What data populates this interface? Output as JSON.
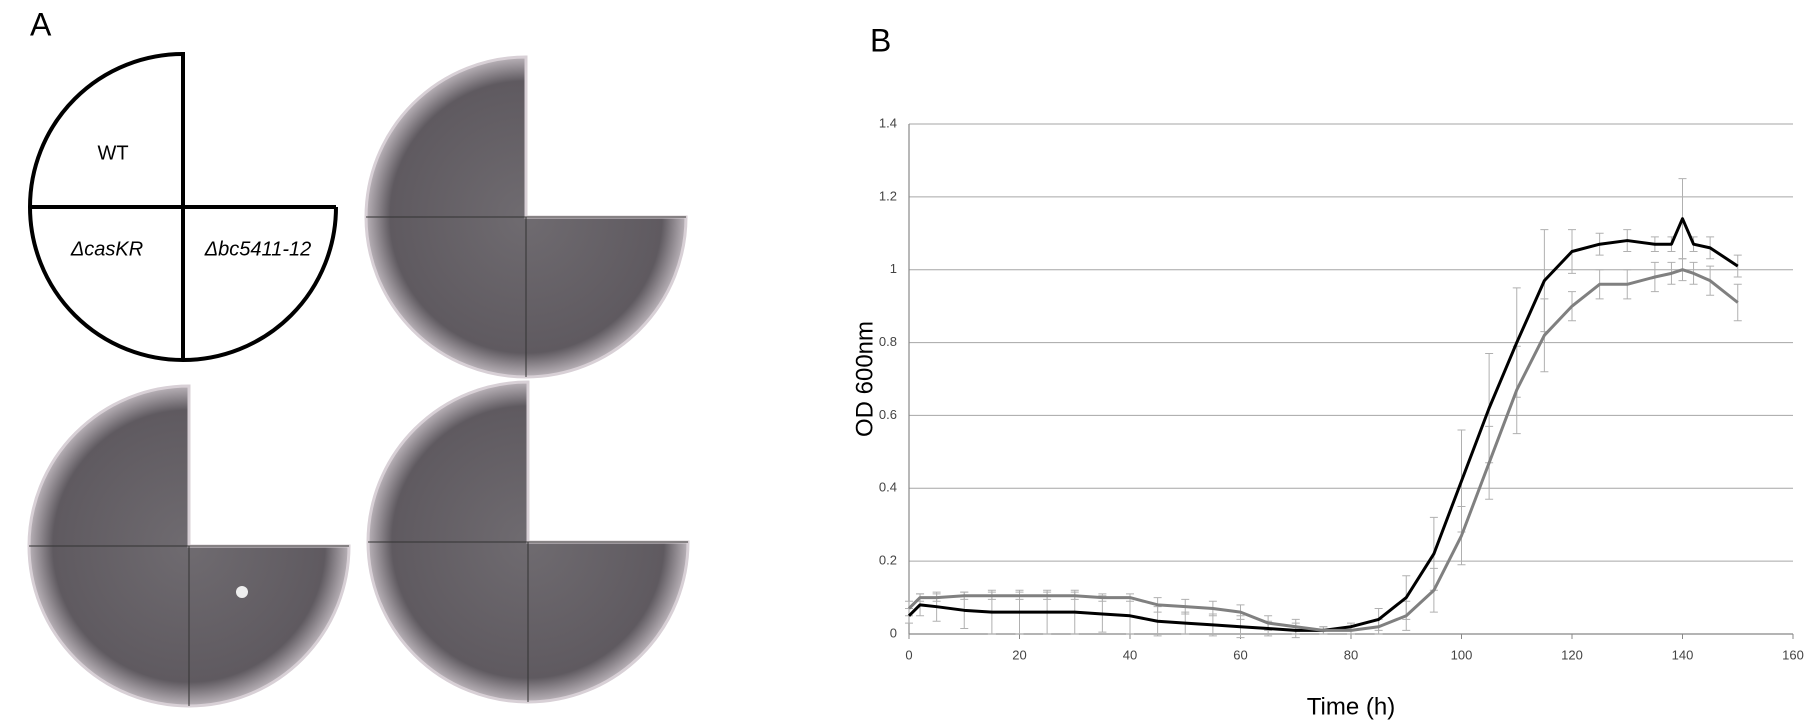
{
  "panel_labels": [
    "A",
    "B"
  ],
  "diagram": {
    "quadrants": [
      "WT",
      "ΔcasKR",
      "Δbc5411-12"
    ]
  },
  "chart_data": {
    "type": "line",
    "x_label": "Time (h)",
    "y_label": "OD 600nm",
    "x": [
      0,
      2,
      5,
      10,
      15,
      20,
      25,
      30,
      35,
      40,
      45,
      50,
      55,
      60,
      65,
      70,
      75,
      80,
      85,
      90,
      95,
      100,
      105,
      110,
      115,
      120,
      125,
      130,
      135,
      138,
      140,
      142,
      145,
      150
    ],
    "series": [
      {
        "color": "#000000",
        "error_color": "#b0b0b0",
        "values": [
          0.05,
          0.08,
          0.075,
          0.065,
          0.06,
          0.06,
          0.06,
          0.06,
          0.055,
          0.05,
          0.035,
          0.03,
          0.025,
          0.02,
          0.015,
          0.01,
          0.01,
          0.02,
          0.04,
          0.1,
          0.22,
          0.42,
          0.62,
          0.8,
          0.97,
          1.05,
          1.07,
          1.08,
          1.07,
          1.07,
          1.14,
          1.07,
          1.06,
          1.01
        ],
        "errors": [
          0.02,
          0.03,
          0.04,
          0.05,
          0.06,
          0.06,
          0.06,
          0.06,
          0.05,
          0.05,
          0.04,
          0.03,
          0.03,
          0.03,
          0.02,
          0.02,
          0.01,
          0.01,
          0.03,
          0.06,
          0.1,
          0.14,
          0.15,
          0.15,
          0.14,
          0.06,
          0.03,
          0.03,
          0.02,
          0.02,
          0.11,
          0.02,
          0.03,
          0.03
        ]
      },
      {
        "color": "#808080",
        "error_color": "#b0b0b0",
        "values": [
          0.07,
          0.1,
          0.1,
          0.105,
          0.105,
          0.105,
          0.105,
          0.105,
          0.1,
          0.1,
          0.08,
          0.075,
          0.07,
          0.06,
          0.03,
          0.02,
          0.01,
          0.01,
          0.02,
          0.05,
          0.12,
          0.27,
          0.47,
          0.67,
          0.82,
          0.9,
          0.96,
          0.96,
          0.98,
          0.99,
          1.0,
          0.99,
          0.97,
          0.91
        ],
        "errors": [
          0.02,
          0.01,
          0.01,
          0.01,
          0.01,
          0.01,
          0.01,
          0.01,
          0.01,
          0.01,
          0.02,
          0.02,
          0.02,
          0.02,
          0.02,
          0.02,
          0.01,
          0.01,
          0.02,
          0.04,
          0.06,
          0.08,
          0.1,
          0.12,
          0.1,
          0.04,
          0.04,
          0.04,
          0.04,
          0.03,
          0.03,
          0.03,
          0.04,
          0.05
        ]
      }
    ],
    "xlim": [
      0,
      160
    ],
    "xticks": [
      0,
      20,
      40,
      60,
      80,
      100,
      120,
      140,
      160
    ],
    "ylim": [
      0,
      1.4
    ],
    "yticks": [
      0,
      0.2,
      0.4,
      0.6,
      0.8,
      1,
      1.2,
      1.4
    ],
    "grid": true
  }
}
